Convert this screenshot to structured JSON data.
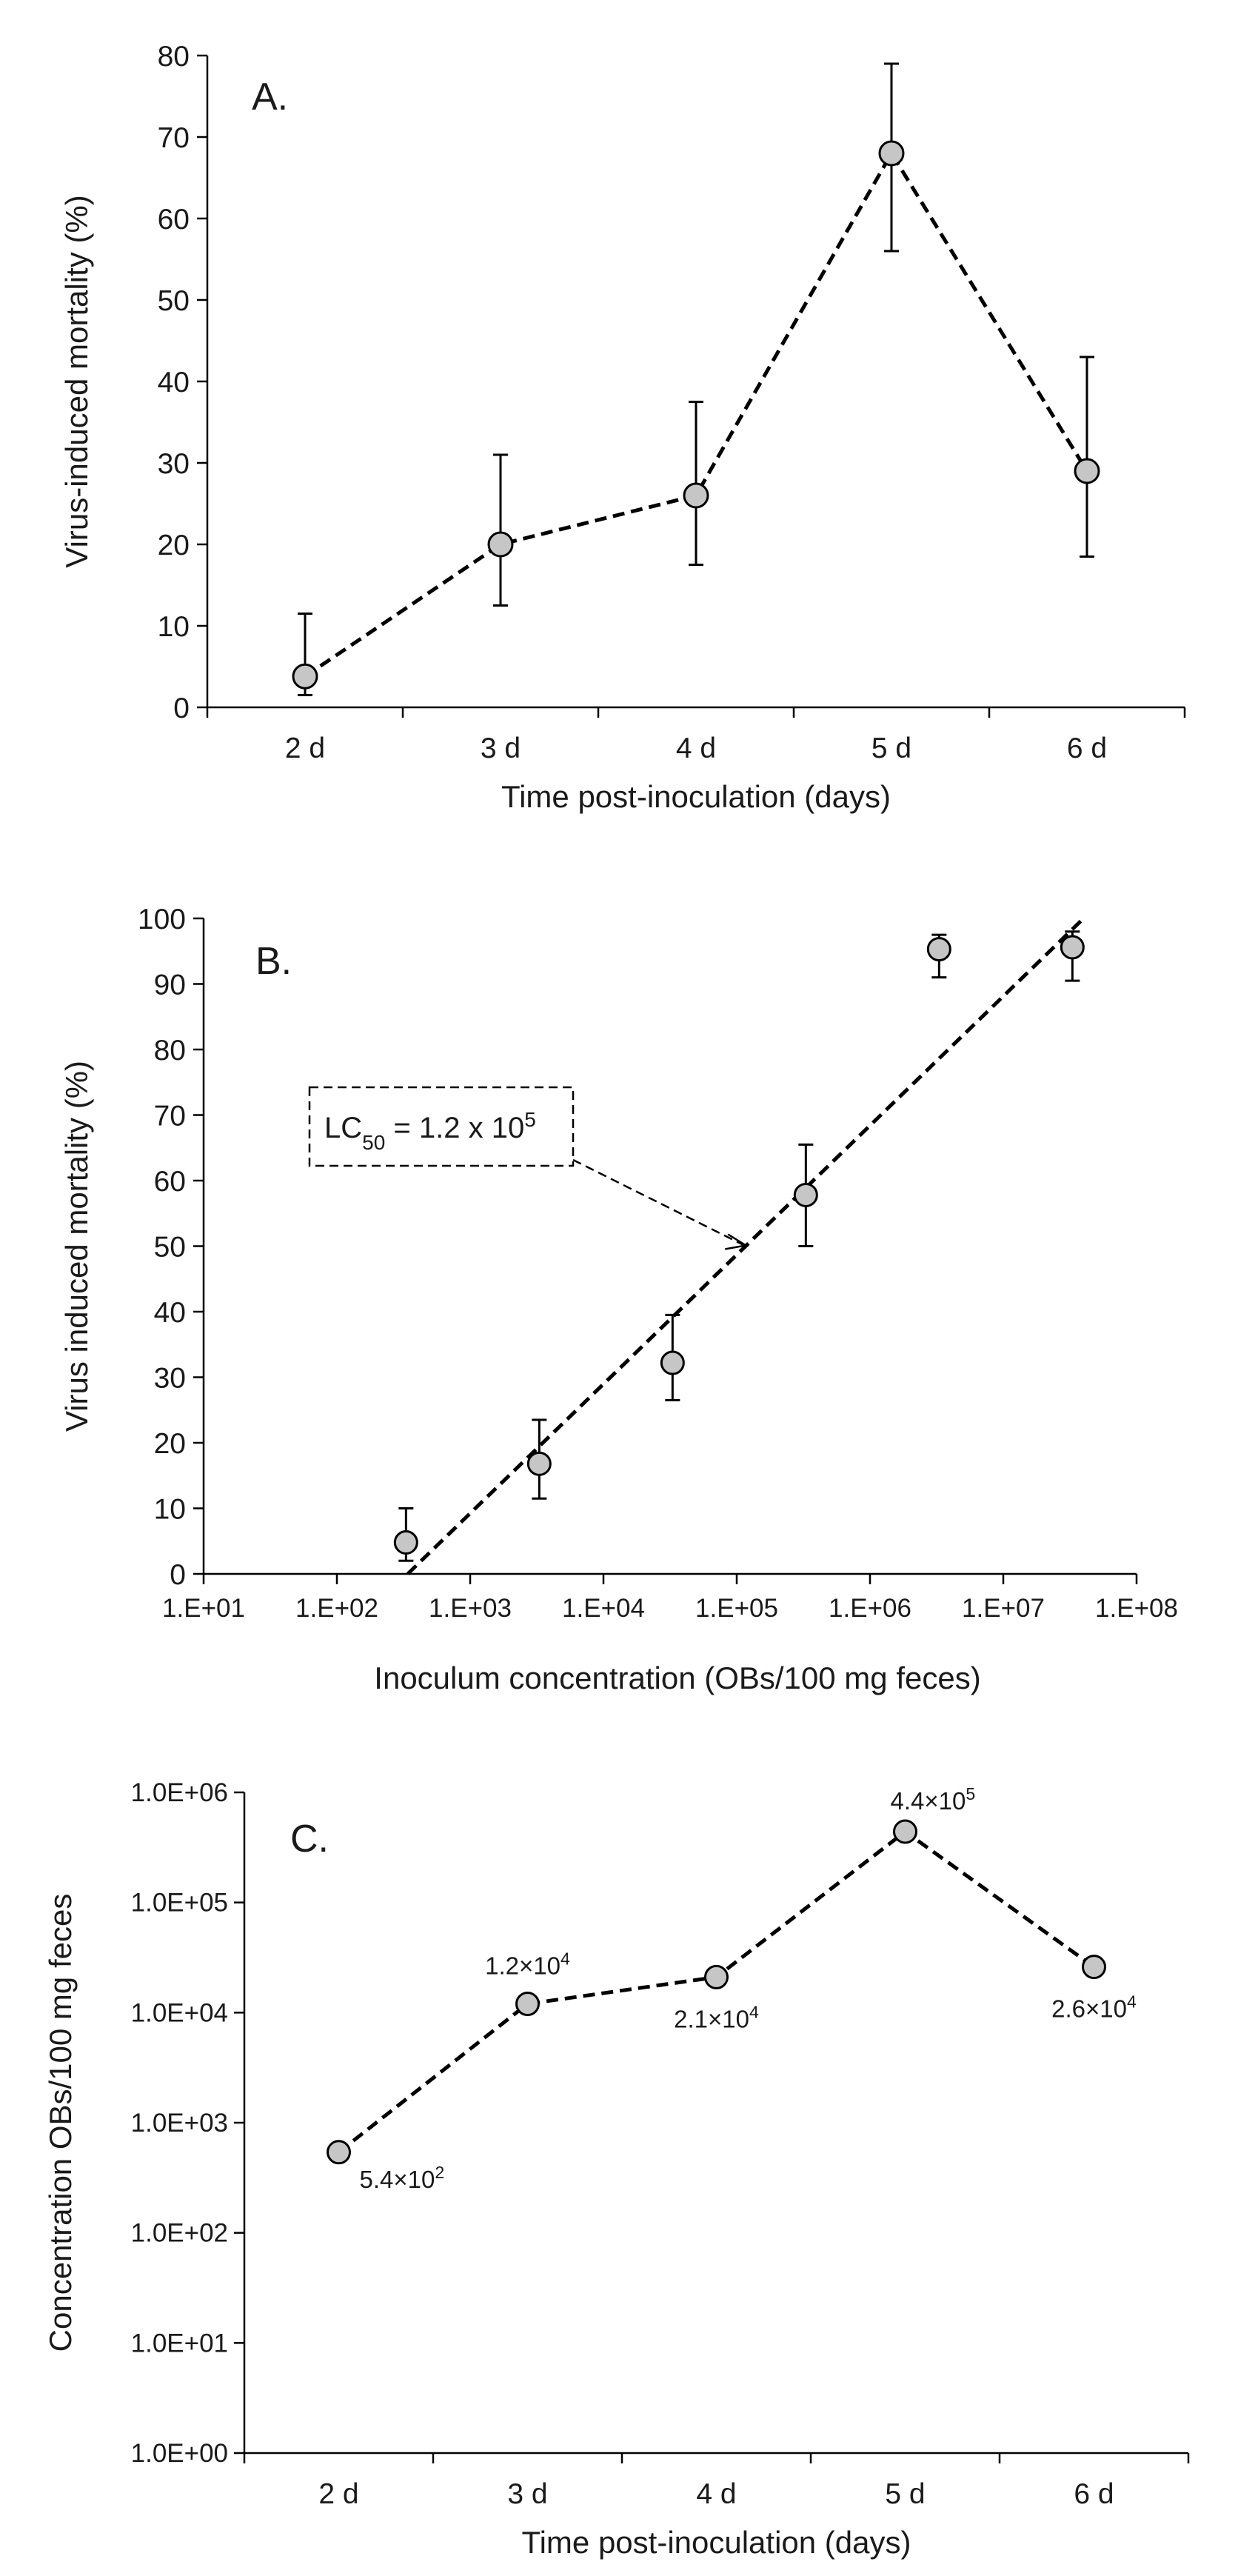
{
  "chart_data": [
    {
      "type": "line",
      "panel_label": "A.",
      "xlabel": "Time post-inoculation (days)",
      "ylabel": "Virus-induced mortality (%)",
      "categories": [
        "2 d",
        "3 d",
        "4 d",
        "5 d",
        "6 d"
      ],
      "values": [
        3.8,
        20,
        26,
        68,
        29
      ],
      "err_low": [
        1.5,
        12.5,
        17.5,
        56,
        18.5
      ],
      "err_high": [
        11.5,
        31,
        37.5,
        79,
        43
      ],
      "ylim": [
        0,
        80
      ],
      "yticks": [
        0,
        10,
        20,
        30,
        40,
        50,
        60,
        70,
        80
      ]
    },
    {
      "type": "scatter",
      "panel_label": "B.",
      "xlabel": "Inoculum concentration (OBs/100 mg feces)",
      "ylabel": "Virus induced mortality (%)",
      "x_scale": "log",
      "xlim": [
        10,
        100000000
      ],
      "xticks": [
        1,
        2,
        3,
        4,
        5,
        6,
        7,
        8
      ],
      "xtick_labels": [
        "1.E+01",
        "1.E+02",
        "1.E+03",
        "1.E+04",
        "1.E+05",
        "1.E+06",
        "1.E+07",
        "1.E+08"
      ],
      "x": [
        330,
        3300,
        33000,
        330000,
        3300000,
        33000000
      ],
      "values": [
        4.8,
        16.8,
        32.2,
        57.8,
        95.3,
        95.6
      ],
      "err_low": [
        2,
        11.5,
        26.5,
        50,
        91,
        90.5
      ],
      "err_high": [
        10,
        23.5,
        39.5,
        65.5,
        97.5,
        98
      ],
      "fit_line": {
        "x": [
          340,
          40000000
        ],
        "y": [
          0,
          100
        ]
      },
      "ylim": [
        0,
        100
      ],
      "yticks": [
        0,
        10,
        20,
        30,
        40,
        50,
        60,
        70,
        80,
        90,
        100
      ],
      "annotation": {
        "lc_prefix": "LC",
        "lc_sub": "50",
        "lc_mid": " = 1.2 x 10",
        "lc_sup": "5",
        "point_x": 120000,
        "point_y": 50
      }
    },
    {
      "type": "line",
      "panel_label": "C.",
      "xlabel": "Time post-inoculation (days)",
      "ylabel": "Concentration OBs/100 mg feces",
      "y_scale": "log",
      "categories": [
        "2 d",
        "3 d",
        "4 d",
        "5 d",
        "6 d"
      ],
      "values": [
        540,
        12000,
        21000,
        440000,
        26000
      ],
      "data_labels": [
        {
          "base": "5.4×10",
          "exp": "2",
          "pos": "below-right"
        },
        {
          "base": "1.2×10",
          "exp": "4",
          "pos": "above"
        },
        {
          "base": "2.1×10",
          "exp": "4",
          "pos": "below"
        },
        {
          "base": "4.4×10",
          "exp": "5",
          "pos": "above-right"
        },
        {
          "base": "2.6×10",
          "exp": "4",
          "pos": "below"
        }
      ],
      "yticks": [
        0,
        1,
        2,
        3,
        4,
        5,
        6
      ],
      "ytick_labels": [
        "1.0E+00",
        "1.0E+01",
        "1.0E+02",
        "1.0E+03",
        "1.0E+04",
        "1.0E+05",
        "1.0E+06"
      ]
    }
  ]
}
